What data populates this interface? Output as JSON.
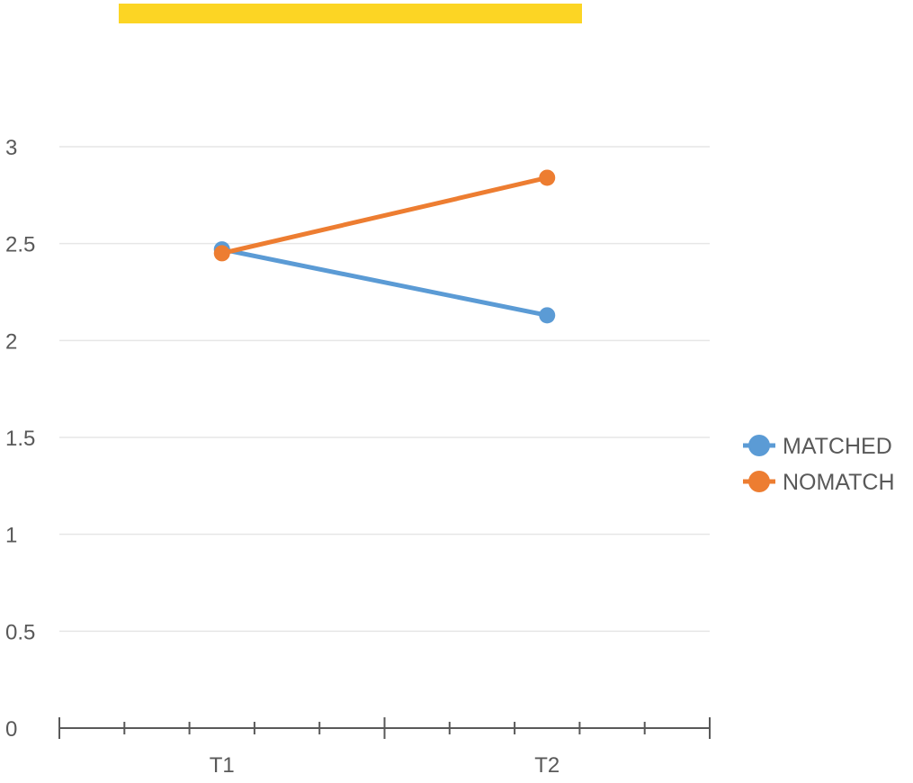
{
  "highlight_color": "#fcd524",
  "chart_data": {
    "type": "line",
    "title": "",
    "xlabel": "",
    "ylabel": "",
    "categories": [
      "T1",
      "T2"
    ],
    "ylim": [
      0,
      3
    ],
    "yticks": [
      0,
      0.5,
      1,
      1.5,
      2,
      2.5,
      3
    ],
    "ytick_labels": [
      "0",
      "0.5",
      "1",
      "1.5",
      "2",
      "2.5",
      "3"
    ],
    "grid": true,
    "legend_position": "right",
    "series": [
      {
        "name": "MATCHED",
        "values": [
          2.47,
          2.13
        ],
        "color": "#5b9bd5"
      },
      {
        "name": "NOMATCH",
        "values": [
          2.45,
          2.84
        ],
        "color": "#ed7d31"
      }
    ]
  },
  "colors": {
    "gridline": "#e6e6e6",
    "axis": "#595959",
    "tick_label": "#595959"
  }
}
